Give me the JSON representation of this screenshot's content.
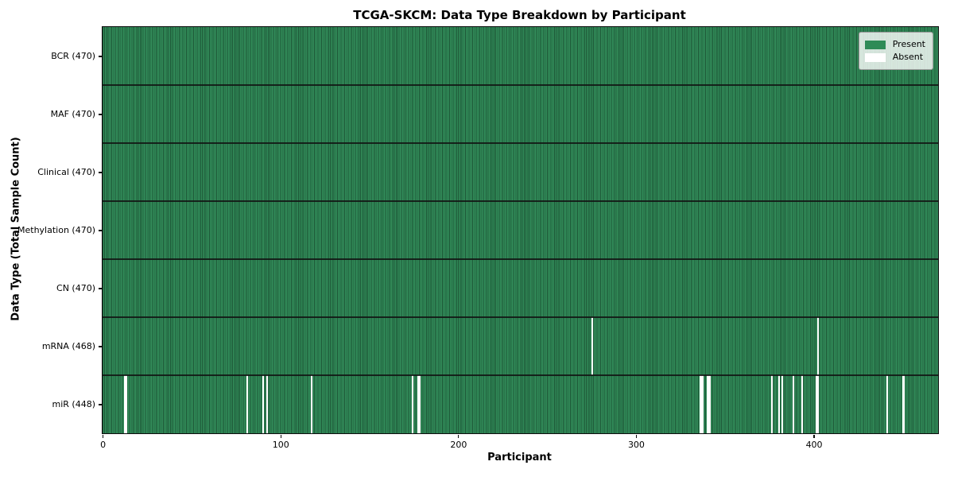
{
  "chart_data": {
    "type": "heatmap",
    "title": "TCGA-SKCM: Data Type Breakdown by Participant",
    "xlabel": "Participant",
    "ylabel": "Data Type (Total Sample Count)",
    "n_participants": 470,
    "x_ticks": [
      0,
      100,
      200,
      300,
      400
    ],
    "xlim": [
      0,
      470
    ],
    "grid": false,
    "legend_position": "upper right",
    "colors": {
      "present": "#2e8b57",
      "absent": "#ffffff",
      "cell_edge": "rgba(0,0,0,0.38)"
    },
    "legend": [
      {
        "label": "Present",
        "color": "#2e8b57"
      },
      {
        "label": "Absent",
        "color": "#ffffff"
      }
    ],
    "rows": [
      {
        "label": "BCR (470)",
        "data_type": "BCR",
        "present_count": 470,
        "absent_participants": []
      },
      {
        "label": "MAF (470)",
        "data_type": "MAF",
        "present_count": 470,
        "absent_participants": []
      },
      {
        "label": "Clinical (470)",
        "data_type": "Clinical",
        "present_count": 470,
        "absent_participants": []
      },
      {
        "label": "Methylation (470)",
        "data_type": "Methylation",
        "present_count": 470,
        "absent_participants": []
      },
      {
        "label": "CN (470)",
        "data_type": "CN",
        "present_count": 470,
        "absent_participants": []
      },
      {
        "label": "mRNA (468)",
        "data_type": "mRNA",
        "present_count": 468,
        "absent_participants": [
          275,
          402
        ]
      },
      {
        "label": "miR (448)",
        "data_type": "miR",
        "present_count": 448,
        "absent_participants": [
          12,
          13,
          81,
          90,
          92,
          117,
          174,
          177,
          178,
          336,
          337,
          340,
          341,
          376,
          380,
          382,
          388,
          393,
          401,
          402,
          441,
          450
        ]
      }
    ]
  }
}
